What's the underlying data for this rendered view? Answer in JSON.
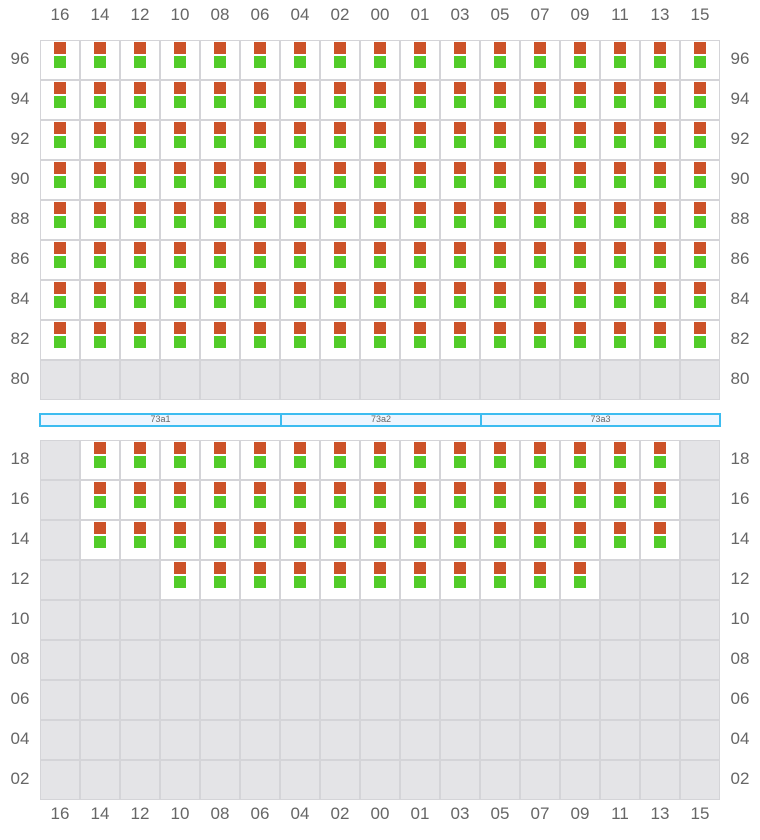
{
  "columns": [
    "16",
    "14",
    "12",
    "10",
    "08",
    "06",
    "04",
    "02",
    "00",
    "01",
    "03",
    "05",
    "07",
    "09",
    "11",
    "13",
    "15"
  ],
  "colors": {
    "top_square": "#cc5229",
    "bottom_square": "#52cc29",
    "empty_cell": "#e4e4e7",
    "band_border": "#3cbcf0",
    "band_fill": "#eef6ff"
  },
  "upper_section": {
    "rows": [
      {
        "label": "96",
        "filled_from": "16",
        "filled_to": "15"
      },
      {
        "label": "94",
        "filled_from": "16",
        "filled_to": "15"
      },
      {
        "label": "92",
        "filled_from": "16",
        "filled_to": "15"
      },
      {
        "label": "90",
        "filled_from": "16",
        "filled_to": "15"
      },
      {
        "label": "88",
        "filled_from": "16",
        "filled_to": "15"
      },
      {
        "label": "86",
        "filled_from": "16",
        "filled_to": "15"
      },
      {
        "label": "84",
        "filled_from": "16",
        "filled_to": "15"
      },
      {
        "label": "82",
        "filled_from": "16",
        "filled_to": "15"
      },
      {
        "label": "80",
        "filled_from": null,
        "filled_to": null
      }
    ]
  },
  "bands": [
    {
      "label": "73a1"
    },
    {
      "label": "73a2"
    },
    {
      "label": "73a3"
    }
  ],
  "lower_section": {
    "rows": [
      {
        "label": "18",
        "filled_from": "14",
        "filled_to": "13"
      },
      {
        "label": "16",
        "filled_from": "14",
        "filled_to": "13"
      },
      {
        "label": "14",
        "filled_from": "14",
        "filled_to": "13"
      },
      {
        "label": "12",
        "filled_from": "10",
        "filled_to": "09"
      },
      {
        "label": "10",
        "filled_from": null,
        "filled_to": null
      },
      {
        "label": "08",
        "filled_from": null,
        "filled_to": null
      },
      {
        "label": "06",
        "filled_from": null,
        "filled_to": null
      },
      {
        "label": "04",
        "filled_from": null,
        "filled_to": null
      },
      {
        "label": "02",
        "filled_from": null,
        "filled_to": null
      }
    ]
  }
}
